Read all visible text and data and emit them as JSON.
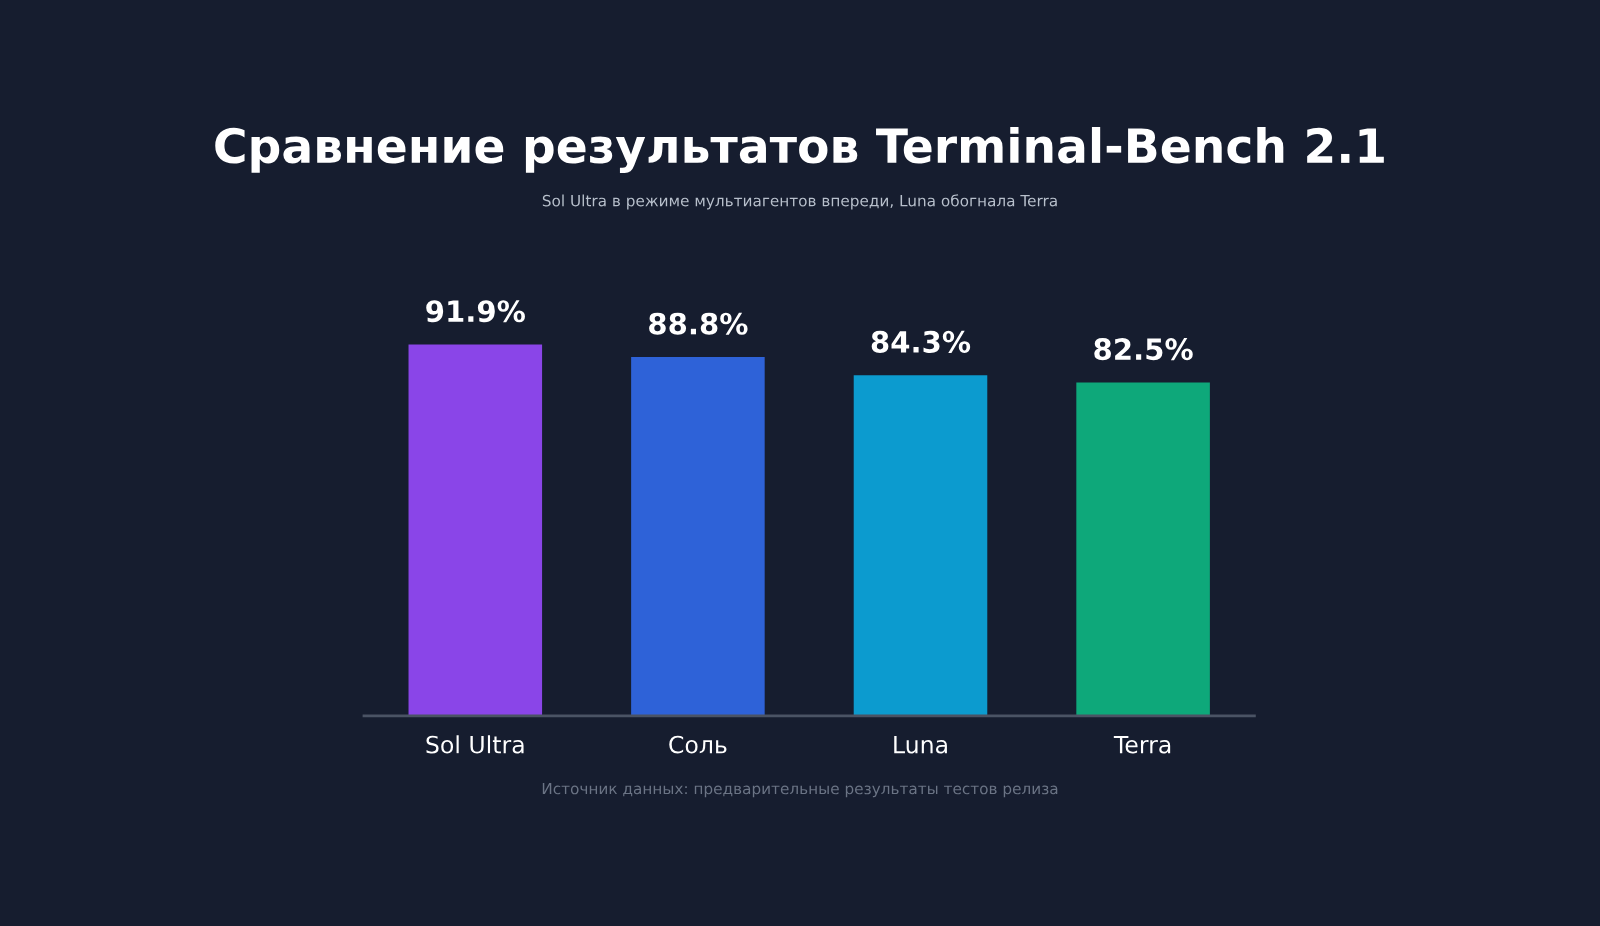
{
  "chart_data": {
    "type": "bar",
    "title": "Сравнение результатов Terminal-Bench 2.1",
    "subtitle": "Sol Ultra в режиме мультиагентов впереди, Luna обогнала Terra",
    "categories": [
      "Sol Ultra",
      "Соль",
      "Luna",
      "Terra"
    ],
    "values": [
      91.9,
      88.8,
      84.3,
      82.5
    ],
    "colors": [
      "#8a45e8",
      "#2e62d8",
      "#0c9bcf",
      "#0ea87a"
    ],
    "value_labels": [
      "91.9%",
      "88.8%",
      "84.3%",
      "82.5%"
    ],
    "tick_labels": "x",
    "grid": false,
    "legend": false,
    "annotations": [
      "Источник данных: предварительные результаты тестов релиза"
    ]
  }
}
